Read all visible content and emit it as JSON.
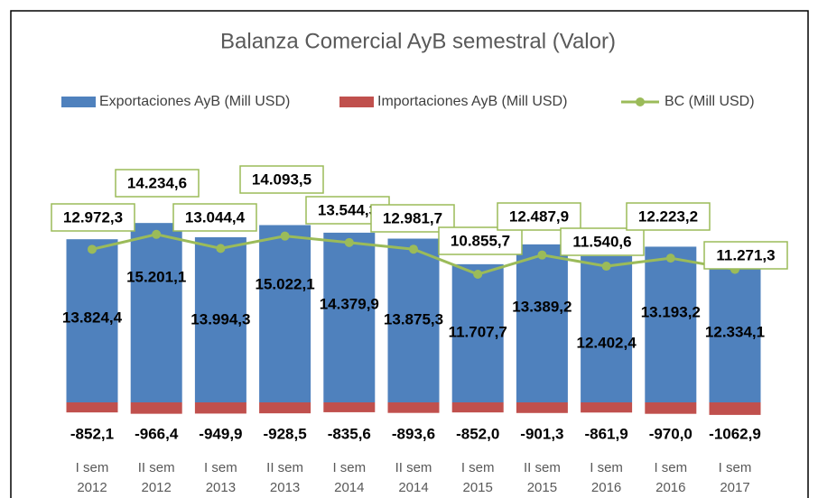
{
  "chart_data": {
    "type": "bar",
    "title": "Balanza Comercial AyB semestral (Valor)",
    "categories": [
      [
        "I sem",
        "2012"
      ],
      [
        "II sem",
        "2012"
      ],
      [
        "I sem",
        "2013"
      ],
      [
        "II sem",
        "2013"
      ],
      [
        "I sem",
        "2014"
      ],
      [
        "II sem",
        "2014"
      ],
      [
        "I sem",
        "2015"
      ],
      [
        "II sem",
        "2015"
      ],
      [
        "I sem",
        "2016"
      ],
      [
        "I sem",
        "2016"
      ],
      [
        "I sem",
        "2017"
      ]
    ],
    "series": [
      {
        "name": "Exportaciones AyB (Mill USD)",
        "color": "#4f81bd",
        "type": "bar",
        "values": [
          13824.4,
          15201.1,
          13994.3,
          15022.1,
          14379.9,
          13875.3,
          11707.7,
          13389.2,
          12402.4,
          13193.2,
          12334.1
        ],
        "value_labels": [
          "13.824,4",
          "15.201,1",
          "13.994,3",
          "15.022,1",
          "14.379,9",
          "13.875,3",
          "11.707,7",
          "13.389,2",
          "12.402,4",
          "13.193,2",
          "12.334,1"
        ]
      },
      {
        "name": "Importaciones AyB (Mill USD)",
        "color": "#c0504d",
        "type": "bar",
        "values": [
          -852.1,
          -966.4,
          -949.9,
          -928.5,
          -835.6,
          -893.6,
          -852.0,
          -901.3,
          -861.9,
          -970.0,
          -1062.9
        ],
        "value_labels": [
          "-852,1",
          "-966,4",
          "-949,9",
          "-928,5",
          "-835,6",
          "-893,6",
          "-852,0",
          "-901,3",
          "-861,9",
          "-970,0",
          "-1062,9"
        ]
      },
      {
        "name": "BC (Mill USD)",
        "color": "#9bbb59",
        "type": "line",
        "values": [
          12972.3,
          14234.6,
          13044.4,
          14093.5,
          13544.3,
          12981.7,
          10855.7,
          12487.9,
          11540.6,
          12223.2,
          11271.3
        ],
        "value_labels": [
          "12.972,3",
          "14.234,6",
          "13.044,4",
          "14.093,5",
          "13.544,3",
          "12.981,7",
          "10.855,7",
          "12.487,9",
          "11.540,6",
          "12.223,2",
          "11.271,3"
        ]
      }
    ]
  }
}
